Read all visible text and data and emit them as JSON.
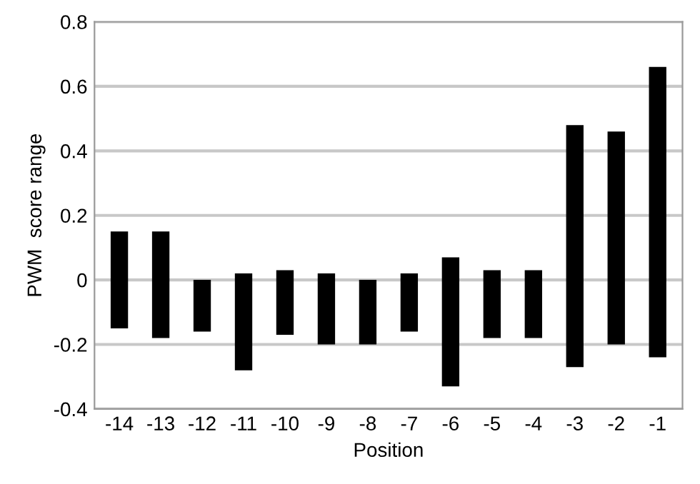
{
  "chart_data": {
    "type": "bar",
    "xlabel": "Position",
    "ylabel": "PWM  score range",
    "categories": [
      "-14",
      "-13",
      "-12",
      "-11",
      "-10",
      "-9",
      "-8",
      "-7",
      "-6",
      "-5",
      "-4",
      "-3",
      "-2",
      "-1"
    ],
    "base": [
      -0.15,
      -0.18,
      -0.16,
      -0.28,
      -0.17,
      -0.2,
      -0.2,
      -0.16,
      -0.33,
      -0.18,
      -0.18,
      -0.27,
      -0.2,
      -0.24
    ],
    "values": [
      0.3,
      0.33,
      0.16,
      0.3,
      0.2,
      0.22,
      0.2,
      0.18,
      0.4,
      0.21,
      0.21,
      0.75,
      0.66,
      0.9
    ],
    "color": "#000000",
    "ylim": [
      -0.4,
      0.8
    ],
    "yticks": [
      -0.4,
      -0.2,
      0,
      0.2,
      0.4,
      0.6,
      0.8
    ],
    "grid": "y"
  }
}
